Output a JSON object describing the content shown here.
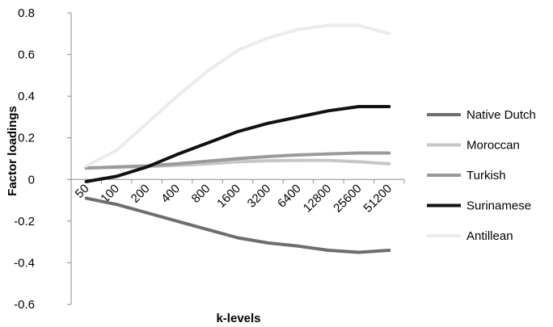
{
  "chart_data": {
    "type": "line",
    "title": "",
    "xlabel": "k-levels",
    "ylabel": "Factor loadings",
    "categories": [
      "50",
      "100",
      "200",
      "400",
      "800",
      "1600",
      "3200",
      "6400",
      "12800",
      "25600",
      "51200"
    ],
    "ylim": [
      -0.6,
      0.8
    ],
    "yticks": [
      "-0.6",
      "-0.4",
      "-0.2",
      "0",
      "0.2",
      "0.4",
      "0.6",
      "0.8"
    ],
    "grid": false,
    "legend_position": "right",
    "series": [
      {
        "name": "Native Dutch",
        "color": "#6e6e6e",
        "values": [
          -0.09,
          -0.12,
          -0.16,
          -0.2,
          -0.24,
          -0.28,
          -0.305,
          -0.32,
          -0.34,
          -0.35,
          -0.34
        ]
      },
      {
        "name": "Moroccan",
        "color": "#c6c6c6",
        "values": [
          0.055,
          0.058,
          0.062,
          0.068,
          0.075,
          0.085,
          0.09,
          0.092,
          0.092,
          0.085,
          0.075
        ]
      },
      {
        "name": "Turkish",
        "color": "#9a9a9a",
        "values": [
          0.055,
          0.06,
          0.065,
          0.075,
          0.088,
          0.1,
          0.11,
          0.118,
          0.123,
          0.127,
          0.127
        ]
      },
      {
        "name": "Surinamese",
        "color": "#111111",
        "values": [
          -0.01,
          0.015,
          0.06,
          0.12,
          0.175,
          0.23,
          0.27,
          0.3,
          0.33,
          0.35,
          0.35
        ]
      },
      {
        "name": "Antillean",
        "color": "#ebebeb",
        "values": [
          0.065,
          0.14,
          0.27,
          0.4,
          0.52,
          0.62,
          0.68,
          0.72,
          0.74,
          0.74,
          0.7
        ]
      }
    ]
  }
}
